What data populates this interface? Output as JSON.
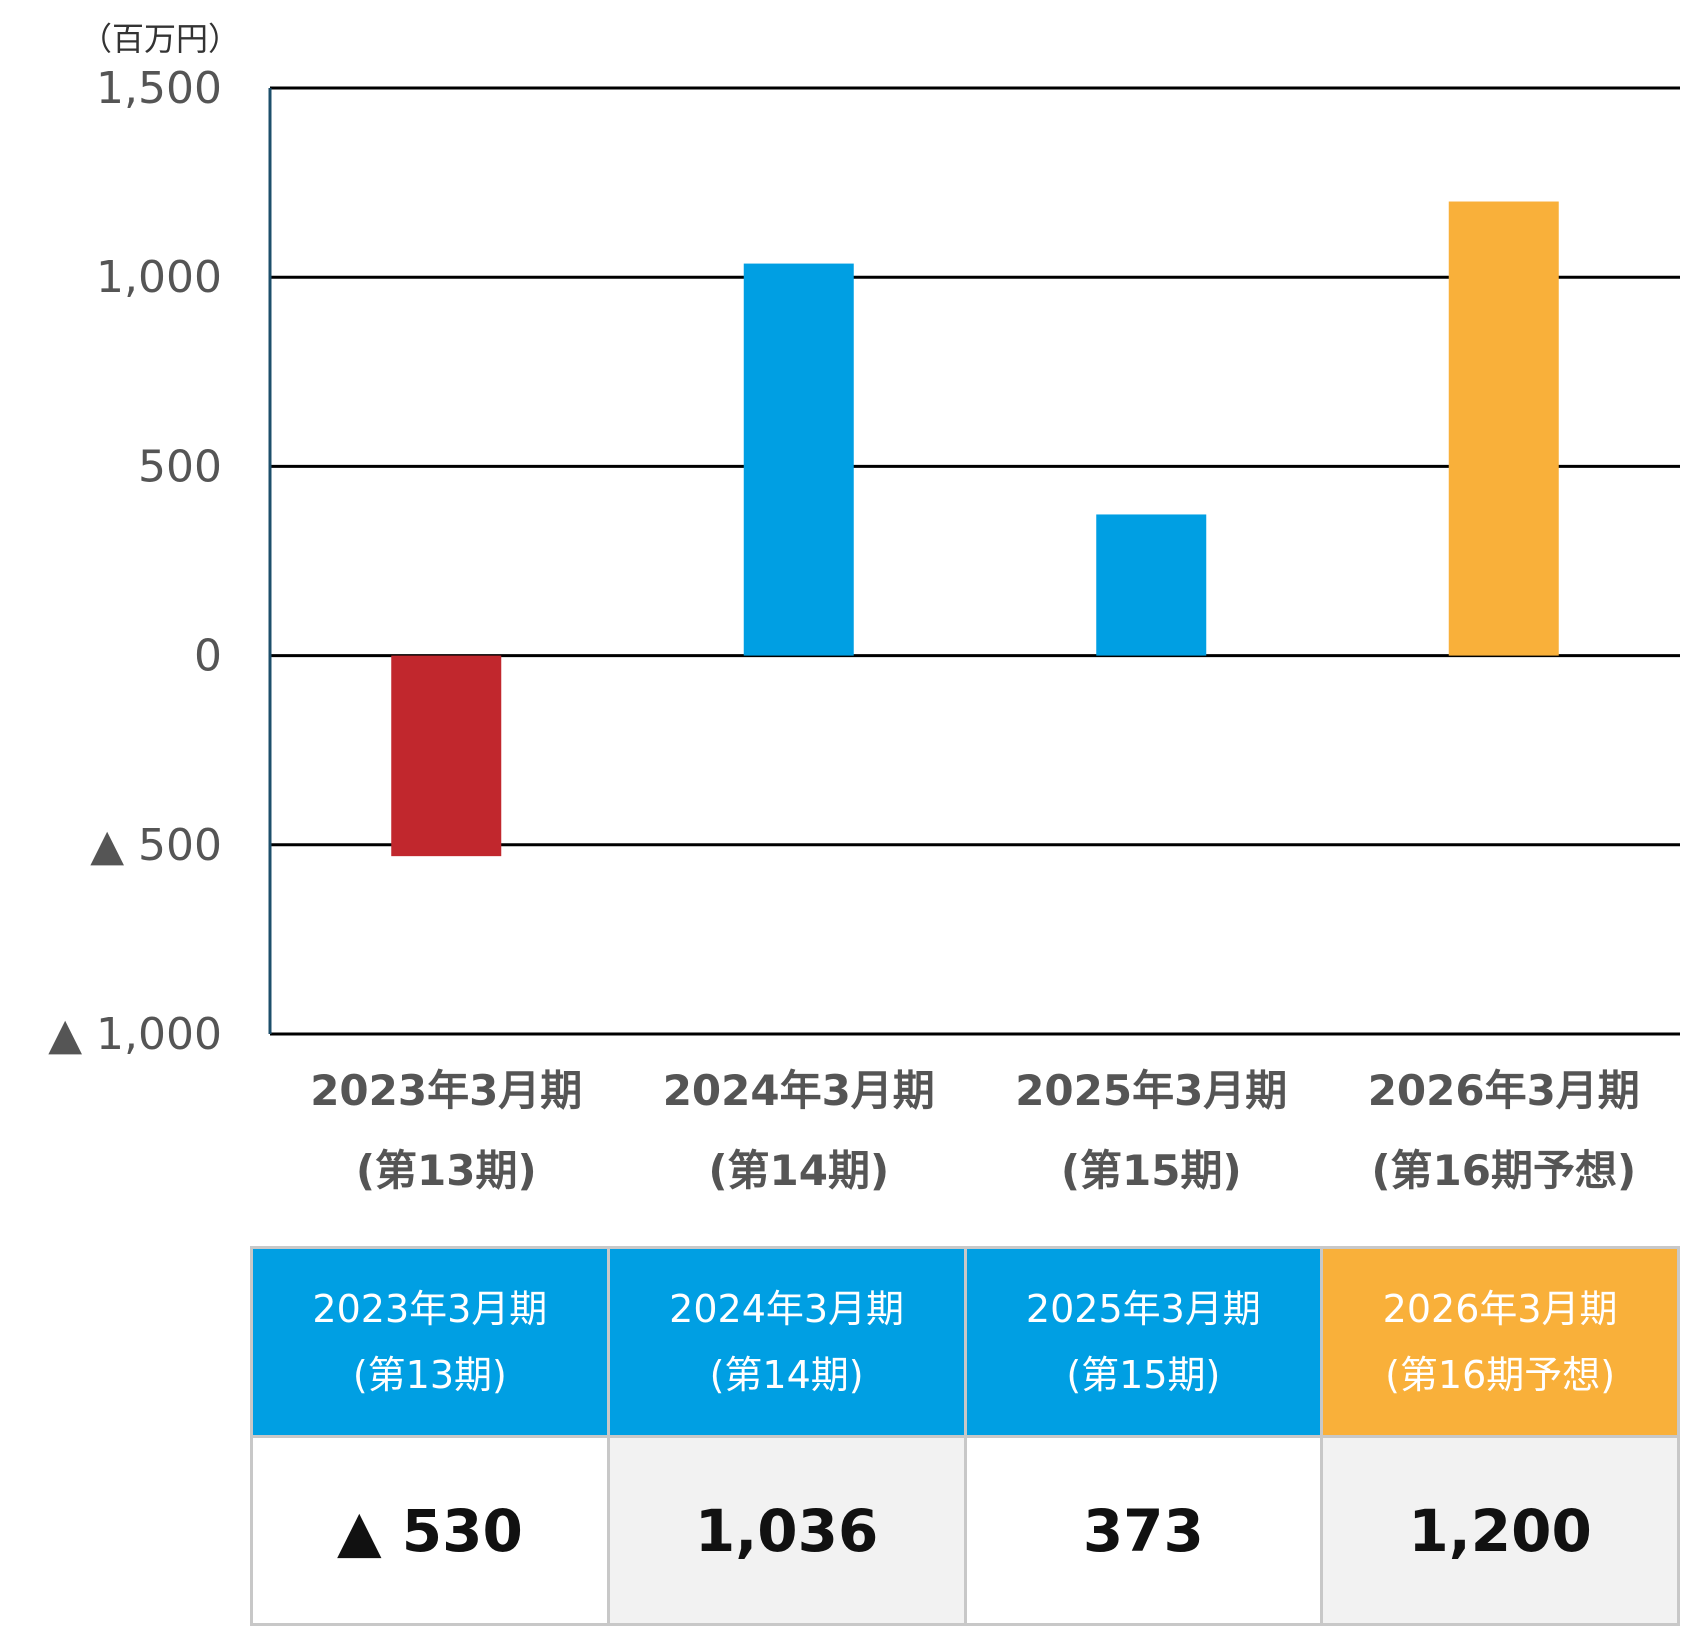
{
  "chart_data": {
    "type": "bar",
    "unit_label": "（百万円）",
    "categories": [
      {
        "line1": "2023年3月期",
        "line2": "(第13期)"
      },
      {
        "line1": "2024年3月期",
        "line2": "(第14期)"
      },
      {
        "line1": "2025年3月期",
        "line2": "(第15期)"
      },
      {
        "line1": "2026年3月期",
        "line2": "(第16期予想)"
      }
    ],
    "values": [
      -530,
      1036,
      373,
      1200
    ],
    "bar_colors": [
      "#c1272d",
      "#009fe3",
      "#009fe3",
      "#f9b03a"
    ],
    "ylim": [
      -1000,
      1500
    ],
    "yticks": [
      {
        "value": 1500,
        "label": "1,500"
      },
      {
        "value": 1000,
        "label": "1,000"
      },
      {
        "value": 500,
        "label": "500"
      },
      {
        "value": 0,
        "label": "0"
      },
      {
        "value": -500,
        "label": "▲ 500"
      },
      {
        "value": -1000,
        "label": "▲ 1,000"
      }
    ],
    "grid": true,
    "axis_color": "#1d4f6b",
    "grid_color": "#000000",
    "tick_label_color": "#555555"
  },
  "table": {
    "columns": [
      {
        "line1": "2023年3月期",
        "line2": "(第13期)",
        "header_color": "#009fe3",
        "value": "▲ 530",
        "cell_bg": "#ffffff"
      },
      {
        "line1": "2024年3月期",
        "line2": "(第14期)",
        "header_color": "#009fe3",
        "value": "1,036",
        "cell_bg": "#f2f2f2"
      },
      {
        "line1": "2025年3月期",
        "line2": "(第15期)",
        "header_color": "#009fe3",
        "value": "373",
        "cell_bg": "#ffffff"
      },
      {
        "line1": "2026年3月期",
        "line2": "(第16期予想)",
        "header_color": "#f9b03a",
        "value": "1,200",
        "cell_bg": "#f2f2f2"
      }
    ]
  }
}
